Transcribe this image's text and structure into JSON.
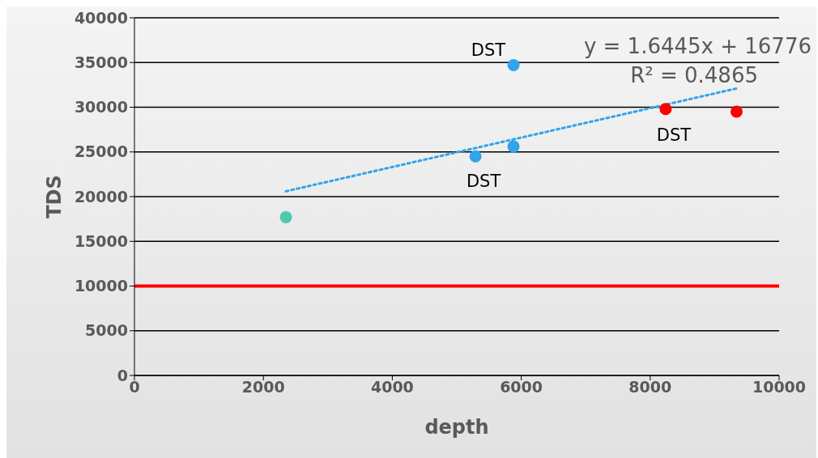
{
  "chart_data": {
    "type": "scatter",
    "xlabel": "depth",
    "ylabel": "TDS",
    "series": [
      {
        "color": "#4ec9b0",
        "x": [
          2350
        ],
        "values": [
          17700
        ]
      },
      {
        "color": "#33a3ea",
        "x": [
          5290,
          5880,
          5880
        ],
        "values": [
          24500,
          25600,
          34700
        ]
      },
      {
        "color": "#ff0000",
        "x": [
          8240,
          9340
        ],
        "values": [
          29800,
          29500
        ]
      },
      {
        "type": "line",
        "color": "#33a3ea",
        "line_style": "dotted",
        "marker": "none",
        "x": [
          2350,
          9340
        ],
        "values": [
          20600,
          32100
        ]
      }
    ],
    "xlim": [
      0,
      10000
    ],
    "xticks": [
      0,
      2000,
      4000,
      6000,
      8000,
      10000
    ],
    "ylim": [
      0,
      40000
    ],
    "yticks": [
      0,
      5000,
      10000,
      15000,
      20000,
      25000,
      30000,
      35000,
      40000
    ],
    "grid": "y",
    "legend": false,
    "marker": "circle",
    "ref_lines": [
      {
        "axis": "y",
        "value": 10000,
        "color": "#ff0000"
      }
    ],
    "annotations": [
      "y = 1.6445x + 16776",
      "R² = 0.4865",
      {
        "text": "DST",
        "x": 5880,
        "y": 34700
      },
      {
        "text": "DST",
        "x": 5290,
        "y": 24500
      },
      {
        "text": "DST",
        "x": 8240,
        "y": 29700
      }
    ]
  }
}
